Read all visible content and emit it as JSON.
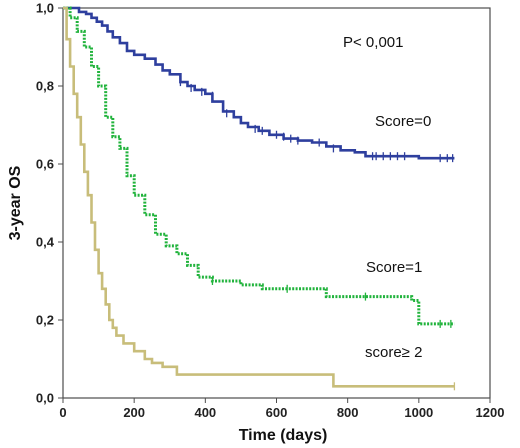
{
  "chart_data": {
    "type": "line",
    "subtype": "kaplan-meier-step",
    "title": "",
    "xlabel": "Time (days)",
    "ylabel": "3-year OS",
    "xlim": [
      0,
      1200
    ],
    "ylim": [
      0,
      1.0
    ],
    "x_ticks": [
      0,
      200,
      400,
      600,
      800,
      1000,
      1200
    ],
    "x_tick_labels": [
      "0",
      "200",
      "400",
      "600",
      "800",
      "1000",
      "1200"
    ],
    "y_ticks": [
      0,
      0.2,
      0.4,
      0.6,
      0.8,
      1.0
    ],
    "y_tick_labels": [
      "0,0",
      "0,2",
      "0,4",
      "0,6",
      "0,8",
      "1,0"
    ],
    "grid": false,
    "legend": "none",
    "annotations": [
      {
        "text": "P< 0,001"
      },
      {
        "text": "Score=0"
      },
      {
        "text": "Score=1"
      },
      {
        "text": "score≥ 2"
      }
    ],
    "series": [
      {
        "color": "#2e3f9e",
        "style": "solid",
        "x": [
          0,
          25,
          45,
          65,
          80,
          95,
          110,
          125,
          140,
          160,
          180,
          200,
          230,
          260,
          280,
          300,
          330,
          350,
          370,
          400,
          420,
          450,
          480,
          500,
          520,
          550,
          580,
          620,
          660,
          700,
          740,
          780,
          820,
          850,
          900,
          1000,
          1100
        ],
        "y": [
          1.0,
          1.0,
          0.99,
          0.985,
          0.975,
          0.965,
          0.955,
          0.94,
          0.925,
          0.91,
          0.89,
          0.88,
          0.87,
          0.855,
          0.84,
          0.83,
          0.81,
          0.8,
          0.79,
          0.78,
          0.76,
          0.735,
          0.72,
          0.705,
          0.695,
          0.685,
          0.675,
          0.665,
          0.66,
          0.655,
          0.645,
          0.635,
          0.63,
          0.62,
          0.62,
          0.615,
          0.615
        ],
        "censor_x": [
          330,
          360,
          390,
          420,
          460,
          540,
          560,
          600,
          620,
          640,
          660,
          720,
          760,
          870,
          880,
          900,
          920,
          940,
          960,
          1060,
          1080,
          1095
        ],
        "censor_y": [
          0.81,
          0.795,
          0.785,
          0.775,
          0.73,
          0.69,
          0.685,
          0.675,
          0.67,
          0.665,
          0.66,
          0.655,
          0.64,
          0.62,
          0.62,
          0.62,
          0.62,
          0.62,
          0.62,
          0.615,
          0.615,
          0.615
        ]
      },
      {
        "color": "#21b33c",
        "style": "dotted",
        "x": [
          0,
          20,
          40,
          60,
          80,
          100,
          120,
          140,
          160,
          180,
          200,
          230,
          260,
          290,
          320,
          350,
          380,
          420,
          460,
          500,
          560,
          620,
          740,
          830,
          980,
          1000,
          1100
        ],
        "y": [
          1.0,
          0.975,
          0.94,
          0.9,
          0.85,
          0.8,
          0.72,
          0.67,
          0.64,
          0.57,
          0.52,
          0.47,
          0.42,
          0.39,
          0.37,
          0.34,
          0.31,
          0.3,
          0.3,
          0.29,
          0.28,
          0.28,
          0.26,
          0.26,
          0.25,
          0.19,
          0.19
        ],
        "censor_x": [
          420,
          630,
          850,
          1060,
          1090
        ],
        "censor_y": [
          0.3,
          0.28,
          0.26,
          0.19,
          0.19
        ]
      },
      {
        "color": "#c8bd7a",
        "style": "solid",
        "x": [
          0,
          10,
          20,
          30,
          40,
          50,
          60,
          70,
          80,
          90,
          100,
          110,
          120,
          130,
          140,
          150,
          170,
          200,
          230,
          250,
          280,
          320,
          400,
          500,
          600,
          700,
          760,
          800,
          900,
          1000,
          1100
        ],
        "y": [
          1.0,
          0.92,
          0.85,
          0.78,
          0.72,
          0.65,
          0.58,
          0.52,
          0.45,
          0.38,
          0.32,
          0.28,
          0.24,
          0.2,
          0.18,
          0.16,
          0.14,
          0.12,
          0.1,
          0.09,
          0.08,
          0.06,
          0.06,
          0.06,
          0.06,
          0.06,
          0.03,
          0.03,
          0.03,
          0.03,
          0.03
        ],
        "censor_x": [
          1100
        ],
        "censor_y": [
          0.03
        ]
      }
    ]
  }
}
